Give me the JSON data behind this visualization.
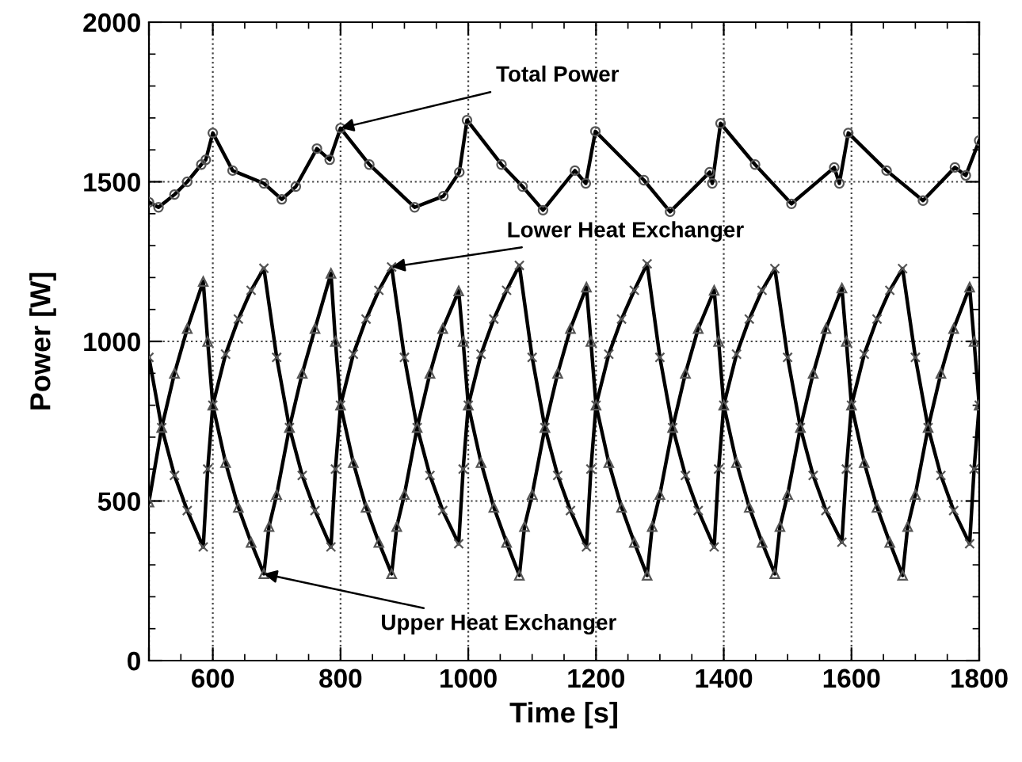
{
  "chart_data": {
    "type": "line",
    "xlabel": "Time [s]",
    "ylabel": "Power [W]",
    "xlim": [
      500,
      1800
    ],
    "xticks": [
      {
        "value": 500,
        "label": null
      },
      600,
      800,
      1000,
      1200,
      1400,
      1600,
      1800
    ],
    "ylim": [
      0,
      2000
    ],
    "yticks": [
      0,
      500,
      1000,
      1500,
      2000
    ],
    "grid": true,
    "legend": false,
    "series": [
      {
        "color": "#000000",
        "marker": "circle",
        "x": [
          500,
          515,
          540,
          560,
          582,
          589,
          600,
          631,
          680,
          708,
          730,
          763,
          783,
          800,
          845,
          916,
          961,
          986,
          998,
          1052,
          1085,
          1117,
          1167,
          1184,
          1199,
          1275,
          1316,
          1378,
          1382,
          1395,
          1449,
          1506,
          1573,
          1581,
          1595,
          1655,
          1712,
          1762,
          1779,
          1800
        ],
        "values": [
          1436,
          1420,
          1460,
          1500,
          1554,
          1569,
          1653,
          1535,
          1495,
          1445,
          1485,
          1604,
          1569,
          1668,
          1554,
          1420,
          1455,
          1530,
          1693,
          1554,
          1485,
          1411,
          1535,
          1495,
          1658,
          1505,
          1406,
          1530,
          1495,
          1683,
          1554,
          1431,
          1545,
          1495,
          1653,
          1535,
          1441,
          1545,
          1520,
          1629
        ]
      },
      {
        "color": "#000000",
        "marker": "cross",
        "x": [
          500,
          520,
          540,
          560,
          585,
          592,
          600,
          620,
          640,
          660,
          680,
          700,
          720,
          740,
          760,
          785,
          792,
          800,
          820,
          840,
          860,
          880,
          900,
          920,
          940,
          960,
          985,
          992,
          1000,
          1020,
          1040,
          1060,
          1080,
          1100,
          1120,
          1140,
          1160,
          1185,
          1192,
          1200,
          1220,
          1240,
          1260,
          1280,
          1300,
          1320,
          1340,
          1360,
          1385,
          1392,
          1400,
          1420,
          1440,
          1460,
          1480,
          1500,
          1520,
          1540,
          1560,
          1585,
          1592,
          1600,
          1620,
          1640,
          1660,
          1680,
          1700,
          1720,
          1740,
          1760,
          1785,
          1792,
          1800
        ],
        "values": [
          950,
          730,
          580,
          470,
          356,
          600,
          800,
          960,
          1070,
          1160,
          1229,
          950,
          730,
          580,
          470,
          356,
          600,
          800,
          960,
          1070,
          1160,
          1233,
          950,
          730,
          580,
          470,
          366,
          600,
          800,
          960,
          1070,
          1160,
          1238,
          950,
          730,
          580,
          470,
          356,
          600,
          800,
          960,
          1070,
          1160,
          1243,
          950,
          730,
          580,
          470,
          356,
          600,
          800,
          960,
          1070,
          1160,
          1228,
          950,
          730,
          580,
          470,
          371,
          600,
          800,
          960,
          1070,
          1160,
          1228,
          950,
          730,
          580,
          470,
          366,
          600,
          800
        ]
      },
      {
        "color": "#000000",
        "marker": "triangle",
        "x": [
          500,
          520,
          540,
          560,
          585,
          592,
          600,
          620,
          640,
          660,
          680,
          688,
          700,
          720,
          740,
          760,
          785,
          792,
          800,
          820,
          840,
          860,
          880,
          888,
          900,
          920,
          940,
          960,
          985,
          992,
          1000,
          1020,
          1040,
          1060,
          1080,
          1088,
          1100,
          1120,
          1140,
          1160,
          1185,
          1192,
          1200,
          1220,
          1240,
          1260,
          1280,
          1288,
          1300,
          1320,
          1340,
          1360,
          1385,
          1392,
          1400,
          1420,
          1440,
          1460,
          1480,
          1488,
          1500,
          1520,
          1540,
          1560,
          1585,
          1592,
          1600,
          1620,
          1640,
          1660,
          1680,
          1688,
          1700,
          1720,
          1740,
          1760,
          1785,
          1792,
          1800
        ],
        "values": [
          497,
          730,
          900,
          1040,
          1188,
          1000,
          800,
          620,
          480,
          370,
          272,
          420,
          520,
          730,
          900,
          1040,
          1213,
          1000,
          800,
          620,
          480,
          370,
          272,
          420,
          520,
          730,
          900,
          1040,
          1158,
          1000,
          800,
          620,
          480,
          370,
          267,
          420,
          520,
          730,
          900,
          1040,
          1170,
          1000,
          800,
          620,
          480,
          370,
          267,
          420,
          520,
          730,
          900,
          1040,
          1160,
          1000,
          800,
          620,
          480,
          370,
          272,
          420,
          520,
          730,
          900,
          1040,
          1167,
          1000,
          800,
          620,
          480,
          370,
          267,
          420,
          520,
          730,
          900,
          1040,
          1170,
          1000,
          800
        ]
      }
    ],
    "annotations": [
      {
        "text": "Total Power",
        "x": 800,
        "y": 1668
      },
      {
        "text": "Lower Heat Exchanger",
        "x": 880,
        "y": 1233
      },
      {
        "text": "Upper Heat Exchanger",
        "x": 680,
        "y": 272
      }
    ]
  }
}
